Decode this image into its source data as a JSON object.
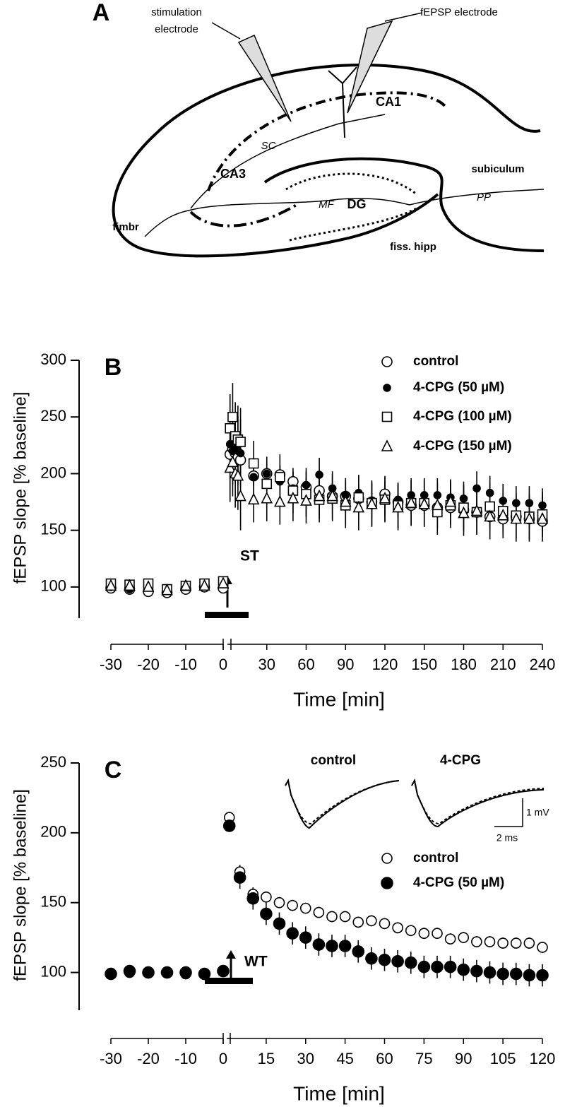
{
  "panel_a": {
    "panel": "A",
    "labels": [
      "stimulation",
      "electrode",
      "fEPSP electrode",
      "CA1",
      "SC",
      "CA3",
      "subiculum",
      "PP",
      "MF",
      "DG",
      "fimbr",
      "fiss. hipp"
    ]
  },
  "chart_data": [
    {
      "type": "scatter",
      "panel": "B",
      "y_label": "fEPSP slope [% baseline]",
      "x_label": "Time [min]",
      "annotation": "ST",
      "legend": "top-right",
      "x": [
        -30,
        -25,
        -20,
        -15,
        -10,
        -5,
        0,
        2,
        4,
        6,
        8,
        10,
        20,
        30,
        40,
        50,
        60,
        70,
        80,
        90,
        100,
        110,
        120,
        130,
        140,
        150,
        160,
        170,
        180,
        190,
        200,
        210,
        220,
        230,
        240
      ],
      "x_segments": [
        {
          "xlim": [
            -30,
            0
          ],
          "xticks": [
            -30,
            -20,
            -10,
            0
          ]
        },
        {
          "xlim": [
            0,
            240
          ],
          "xticks": [
            30,
            60,
            90,
            120,
            150,
            180,
            210,
            240
          ]
        }
      ],
      "ylim": [
        75,
        300
      ],
      "yticks": [
        100,
        150,
        200,
        250,
        300
      ],
      "series": [
        {
          "name": "control",
          "marker": "circle-open",
          "color": "#000000",
          "values": [
            99,
            98,
            96,
            95,
            98,
            100,
            99,
            217,
            222,
            218,
            214,
            212,
            198,
            200,
            199,
            193,
            188,
            185,
            180,
            180,
            178,
            175,
            182,
            175,
            172,
            172,
            170,
            170,
            168,
            166,
            162,
            160,
            162,
            160,
            158
          ],
          "errors": [
            3,
            3,
            3,
            3,
            3,
            3,
            3,
            15,
            15,
            15,
            15,
            15,
            8,
            8,
            8,
            8,
            8,
            8,
            8,
            8,
            8,
            8,
            8,
            8,
            8,
            8,
            8,
            8,
            8,
            8,
            8,
            8,
            8,
            8,
            8
          ]
        },
        {
          "name": "4-CPG (50 µM)",
          "marker": "dot",
          "color": "#000000",
          "values": [
            100,
            98,
            100,
            98,
            102,
            101,
            104,
            226,
            220,
            222,
            220,
            218,
            197,
            200,
            193,
            187,
            190,
            199,
            187,
            181,
            183,
            176,
            178,
            177,
            181,
            181,
            181,
            179,
            178,
            187,
            183,
            176,
            174,
            174,
            172
          ],
          "errors": [
            3,
            3,
            3,
            3,
            3,
            3,
            3,
            30,
            30,
            30,
            30,
            30,
            15,
            15,
            15,
            15,
            15,
            15,
            15,
            15,
            15,
            15,
            15,
            15,
            15,
            15,
            15,
            15,
            15,
            15,
            15,
            15,
            15,
            15,
            15
          ]
        },
        {
          "name": "4-CPG (100 µM)",
          "marker": "square-open",
          "color": "#000000",
          "values": [
            103,
            102,
            103,
            98,
            101,
            103,
            105,
            240,
            250,
            233,
            230,
            228,
            209,
            191,
            197,
            185,
            182,
            177,
            178,
            172,
            179,
            174,
            177,
            172,
            174,
            174,
            166,
            172,
            170,
            166,
            171,
            167,
            163,
            162,
            164
          ],
          "errors": [
            3,
            3,
            3,
            3,
            3,
            3,
            3,
            30,
            30,
            30,
            30,
            30,
            20,
            20,
            20,
            20,
            20,
            20,
            20,
            20,
            20,
            20,
            20,
            20,
            20,
            20,
            20,
            20,
            20,
            20,
            20,
            20,
            20,
            20,
            20
          ]
        },
        {
          "name": "4-CPG (150 µM)",
          "marker": "triangle-open",
          "color": "#000000",
          "values": [
            101,
            101,
            100,
            97,
            101,
            101,
            103,
            205,
            210,
            200,
            198,
            180,
            177,
            178,
            175,
            178,
            176,
            180,
            180,
            175,
            170,
            173,
            178,
            170,
            174,
            173,
            172,
            175,
            165,
            167,
            162,
            163,
            160,
            160,
            160
          ],
          "errors": [
            3,
            3,
            3,
            3,
            3,
            3,
            3,
            30,
            30,
            30,
            30,
            30,
            20,
            20,
            20,
            20,
            20,
            20,
            20,
            20,
            20,
            20,
            20,
            20,
            20,
            20,
            20,
            20,
            20,
            20,
            20,
            20,
            20,
            20,
            20
          ]
        }
      ]
    },
    {
      "type": "scatter",
      "panel": "C",
      "y_label": "fEPSP slope [% baseline]",
      "x_label": "Time [min]",
      "annotation": "WT",
      "legend": "top-right",
      "inset_labels": [
        "control",
        "4-CPG"
      ],
      "scale_labels": [
        "1 mV",
        "2 ms"
      ],
      "x": [
        -30,
        -25,
        -20,
        -15,
        -10,
        -5,
        0,
        1,
        5,
        10,
        15,
        20,
        25,
        30,
        35,
        40,
        45,
        50,
        55,
        60,
        65,
        70,
        75,
        80,
        85,
        90,
        95,
        100,
        105,
        110,
        115,
        120
      ],
      "x_segments": [
        {
          "xlim": [
            -30,
            0
          ],
          "xticks": [
            -30,
            -20,
            -10,
            0
          ]
        },
        {
          "xlim": [
            0,
            120
          ],
          "xticks": [
            15,
            30,
            45,
            60,
            75,
            90,
            105,
            120
          ]
        }
      ],
      "ylim": [
        75,
        250
      ],
      "yticks": [
        100,
        150,
        200,
        250
      ],
      "series": [
        {
          "name": "control",
          "marker": "circle-open",
          "color": "#000000",
          "values": [
            99,
            100,
            100,
            100,
            99,
            99,
            101,
            211,
            172,
            156,
            154,
            150,
            148,
            146,
            143,
            140,
            140,
            136,
            137,
            135,
            132,
            130,
            128,
            128,
            124,
            125,
            122,
            122,
            121,
            121,
            121,
            118
          ],
          "errors": [
            2,
            2,
            2,
            2,
            2,
            2,
            2,
            4,
            5,
            4,
            4,
            4,
            4,
            4,
            4,
            4,
            4,
            4,
            4,
            4,
            4,
            4,
            4,
            4,
            4,
            4,
            4,
            4,
            4,
            4,
            4,
            4
          ]
        },
        {
          "name": "4-CPG (50 µM)",
          "marker": "circle-filled",
          "color": "#000000",
          "values": [
            99,
            101,
            100,
            100,
            100,
            99,
            101,
            205,
            168,
            153,
            142,
            135,
            128,
            125,
            120,
            119,
            119,
            115,
            110,
            109,
            108,
            107,
            104,
            104,
            104,
            102,
            101,
            100,
            99,
            99,
            98,
            98
          ],
          "errors": [
            2,
            2,
            2,
            2,
            2,
            2,
            2,
            4,
            8,
            8,
            8,
            8,
            8,
            8,
            8,
            8,
            8,
            8,
            8,
            8,
            8,
            8,
            8,
            8,
            8,
            8,
            8,
            8,
            8,
            8,
            8,
            8
          ]
        }
      ]
    }
  ]
}
